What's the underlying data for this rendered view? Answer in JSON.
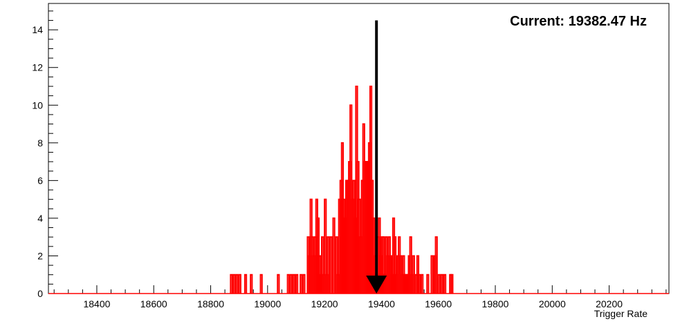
{
  "chart_data": {
    "type": "histogram",
    "xlabel": "Trigger Rate",
    "ylabel": "",
    "xlim": [
      18230,
      20410
    ],
    "ylim": [
      0,
      15.4
    ],
    "x_ticks": [
      18400,
      18600,
      18800,
      19000,
      19200,
      19400,
      19600,
      19800,
      20000,
      20200
    ],
    "y_ticks": [
      0,
      2,
      4,
      6,
      8,
      10,
      12,
      14
    ],
    "bin_width": 5.45,
    "series": [
      {
        "color": "#ff0000",
        "bins": [
          [
            18870,
            1
          ],
          [
            18880,
            1
          ],
          [
            18890,
            1
          ],
          [
            18900,
            1
          ],
          [
            18920,
            1
          ],
          [
            18940,
            1
          ],
          [
            18975,
            1
          ],
          [
            19035,
            1
          ],
          [
            19070,
            1
          ],
          [
            19080,
            1
          ],
          [
            19090,
            1
          ],
          [
            19100,
            1
          ],
          [
            19115,
            1
          ],
          [
            19125,
            1
          ],
          [
            19140,
            3
          ],
          [
            19145,
            2
          ],
          [
            19150,
            5
          ],
          [
            19155,
            3
          ],
          [
            19160,
            2
          ],
          [
            19165,
            3
          ],
          [
            19170,
            5
          ],
          [
            19175,
            4
          ],
          [
            19180,
            2
          ],
          [
            19185,
            1
          ],
          [
            19190,
            3
          ],
          [
            19195,
            1
          ],
          [
            19200,
            5
          ],
          [
            19205,
            1
          ],
          [
            19210,
            3
          ],
          [
            19220,
            3
          ],
          [
            19230,
            4
          ],
          [
            19240,
            3
          ],
          [
            19245,
            1
          ],
          [
            19250,
            5
          ],
          [
            19255,
            6
          ],
          [
            19260,
            8
          ],
          [
            19265,
            5
          ],
          [
            19270,
            4
          ],
          [
            19275,
            6
          ],
          [
            19280,
            6
          ],
          [
            19285,
            7
          ],
          [
            19290,
            10
          ],
          [
            19295,
            5
          ],
          [
            19300,
            6
          ],
          [
            19305,
            4
          ],
          [
            19310,
            11
          ],
          [
            19315,
            7
          ],
          [
            19320,
            5
          ],
          [
            19325,
            3
          ],
          [
            19330,
            6
          ],
          [
            19335,
            9
          ],
          [
            19340,
            7
          ],
          [
            19345,
            7
          ],
          [
            19350,
            7
          ],
          [
            19355,
            8
          ],
          [
            19360,
            11
          ],
          [
            19365,
            6
          ],
          [
            19370,
            4
          ],
          [
            19375,
            2
          ],
          [
            19380,
            1
          ],
          [
            19385,
            3
          ],
          [
            19390,
            4
          ],
          [
            19395,
            2
          ],
          [
            19400,
            3
          ],
          [
            19405,
            3
          ],
          [
            19410,
            1
          ],
          [
            19415,
            3
          ],
          [
            19420,
            2
          ],
          [
            19425,
            3
          ],
          [
            19430,
            2
          ],
          [
            19435,
            1
          ],
          [
            19440,
            4
          ],
          [
            19445,
            3
          ],
          [
            19450,
            1
          ],
          [
            19455,
            2
          ],
          [
            19460,
            3
          ],
          [
            19465,
            2
          ],
          [
            19470,
            1
          ],
          [
            19475,
            2
          ],
          [
            19480,
            1
          ],
          [
            19485,
            1
          ],
          [
            19490,
            1
          ],
          [
            19495,
            2
          ],
          [
            19500,
            3
          ],
          [
            19505,
            1
          ],
          [
            19510,
            2
          ],
          [
            19520,
            1
          ],
          [
            19525,
            2
          ],
          [
            19530,
            1
          ],
          [
            19540,
            1
          ],
          [
            19560,
            1
          ],
          [
            19575,
            2
          ],
          [
            19585,
            2
          ],
          [
            19590,
            3
          ],
          [
            19600,
            1
          ],
          [
            19610,
            1
          ],
          [
            19620,
            1
          ],
          [
            19640,
            1
          ],
          [
            19645,
            1
          ]
        ]
      }
    ],
    "annotations": [
      {
        "text": "Current: 19382.47 Hz",
        "position": "top-right"
      }
    ],
    "marker": {
      "type": "arrow",
      "direction": "down",
      "x": 19382.47,
      "y_from": 14.5,
      "y_to": 0,
      "color": "#000000"
    },
    "grid": false,
    "legend": "none"
  }
}
